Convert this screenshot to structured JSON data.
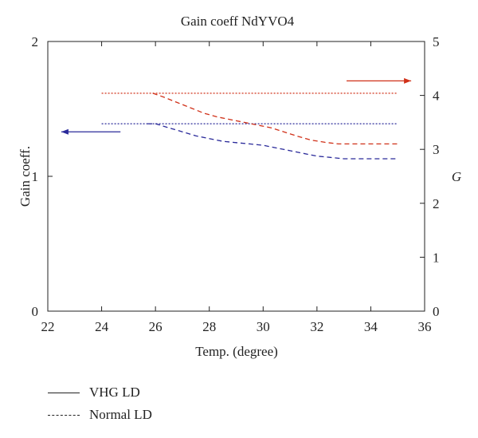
{
  "chart_data": {
    "type": "line",
    "title": "Gain coeff NdYVO4",
    "xlabel": "Temp. (degree)",
    "ylabel": "Gain coeff.",
    "y2label": "G",
    "xlim": [
      22,
      36
    ],
    "ylim": [
      0,
      2
    ],
    "y2lim": [
      0,
      5
    ],
    "xticks": [
      "22",
      "24",
      "26",
      "28",
      "30",
      "32",
      "34",
      "36"
    ],
    "yticks": [
      "0",
      "1",
      "2"
    ],
    "y2ticks": [
      "0",
      "1",
      "2",
      "3",
      "4",
      "5"
    ],
    "grid": false,
    "colors": {
      "gain": "#2a2a9a",
      "g": "#d03018",
      "axis": "#222222"
    },
    "series": [
      {
        "key": "gain-vhg",
        "axis": "left",
        "color": "#2a2a9a",
        "style": "dotted",
        "x": [
          24,
          25,
          26,
          27,
          28,
          29,
          30,
          31,
          32,
          33,
          34,
          35
        ],
        "y": [
          1.39,
          1.39,
          1.39,
          1.39,
          1.39,
          1.39,
          1.39,
          1.39,
          1.39,
          1.39,
          1.39,
          1.39
        ]
      },
      {
        "key": "gain-normal",
        "axis": "left",
        "color": "#2a2a9a",
        "style": "dashed",
        "x": [
          25.7,
          26,
          26.5,
          27,
          27.5,
          28,
          28.5,
          29,
          29.5,
          30,
          30.5,
          31,
          31.5,
          32,
          32.5,
          33,
          33.5,
          34,
          34.5,
          35
        ],
        "y": [
          1.39,
          1.39,
          1.36,
          1.33,
          1.3,
          1.28,
          1.26,
          1.25,
          1.24,
          1.23,
          1.21,
          1.19,
          1.17,
          1.15,
          1.14,
          1.13,
          1.13,
          1.13,
          1.13,
          1.13
        ]
      },
      {
        "key": "g-vhg",
        "axis": "right",
        "color": "#d03018",
        "style": "dotted",
        "x": [
          24,
          25,
          26,
          27,
          28,
          29,
          30,
          31,
          32,
          33,
          34,
          35
        ],
        "y": [
          4.04,
          4.04,
          4.04,
          4.04,
          4.04,
          4.04,
          4.04,
          4.04,
          4.04,
          4.04,
          4.04,
          4.04
        ]
      },
      {
        "key": "g-normal",
        "axis": "right",
        "color": "#d03018",
        "style": "dashed",
        "x": [
          25.9,
          26.3,
          26.8,
          27.3,
          27.8,
          28.3,
          28.8,
          29.3,
          29.8,
          30.3,
          30.8,
          31.3,
          31.8,
          32.3,
          32.8,
          33.3,
          34,
          35
        ],
        "y": [
          4.04,
          3.97,
          3.87,
          3.77,
          3.67,
          3.6,
          3.55,
          3.5,
          3.45,
          3.4,
          3.32,
          3.24,
          3.17,
          3.13,
          3.1,
          3.1,
          3.1,
          3.1
        ]
      }
    ],
    "arrows": [
      {
        "key": "arrow-left",
        "color": "#2a2a9a",
        "x": [
          24.7,
          22.5
        ],
        "y": [
          1.33,
          1.33
        ],
        "axis": "left"
      },
      {
        "key": "arrow-right",
        "color": "#d03018",
        "x": [
          33.1,
          35.5
        ],
        "y": [
          4.27,
          4.27
        ],
        "axis": "right"
      }
    ]
  },
  "legend": {
    "items": [
      {
        "label": "VHG LD",
        "style": "solid"
      },
      {
        "label": "Normal LD",
        "style": "dashed"
      }
    ]
  }
}
